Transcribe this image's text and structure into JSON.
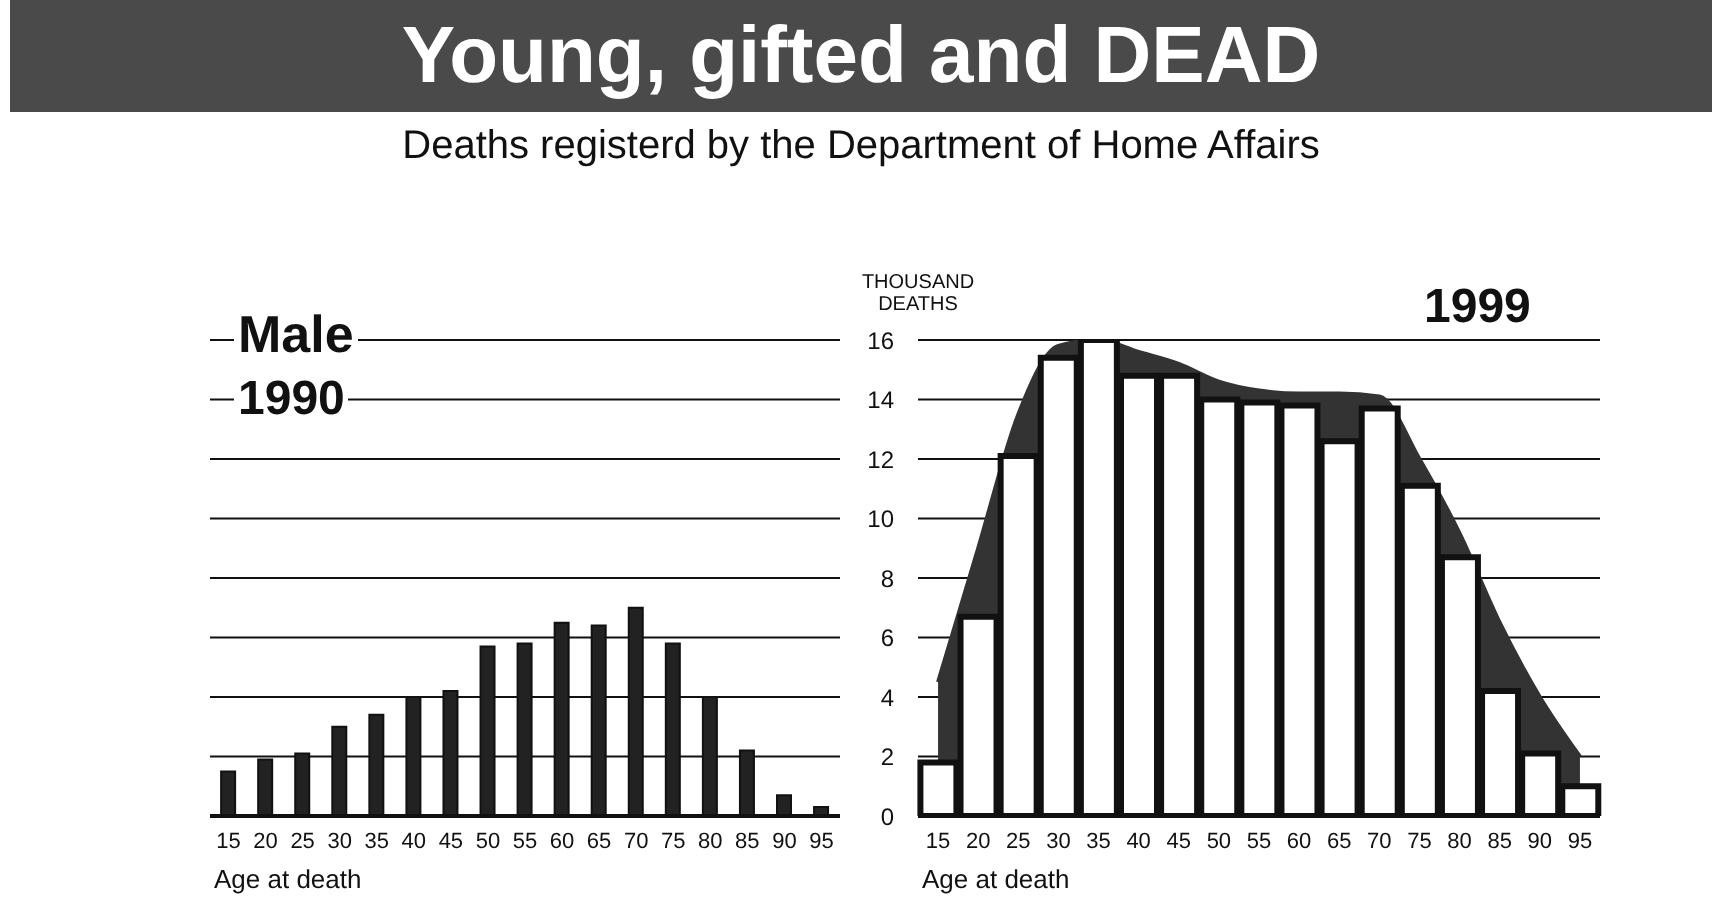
{
  "chart_data": [
    {
      "type": "bar",
      "title": "Young, gifted and DEAD",
      "subtitle": "Deaths registerd by the Department of Home Affairs",
      "annotations": [
        "Male",
        "1990"
      ],
      "xlabel": "Age at death",
      "categories": [
        "15",
        "20",
        "25",
        "30",
        "35",
        "40",
        "45",
        "50",
        "55",
        "60",
        "65",
        "70",
        "75",
        "80",
        "85",
        "90",
        "95"
      ],
      "series": [
        {
          "color": "#222222",
          "values": [
            1.5,
            1.9,
            2.1,
            3.0,
            3.4,
            4.0,
            4.2,
            5.7,
            5.8,
            6.5,
            6.4,
            7.0,
            5.8,
            4.0,
            2.2,
            0.7,
            0.3
          ]
        }
      ],
      "ylim": [
        0,
        16
      ],
      "yticks": [
        0,
        2,
        4,
        6,
        8,
        10,
        12,
        14,
        16
      ],
      "grid": "y",
      "tick_labels": "x"
    },
    {
      "type": "bar",
      "annotations": [
        "1999"
      ],
      "ylabel": "THOUSAND DEATHS",
      "xlabel": "Age at death",
      "categories": [
        "15",
        "20",
        "25",
        "30",
        "35",
        "40",
        "45",
        "50",
        "55",
        "60",
        "65",
        "70",
        "75",
        "80",
        "85",
        "90",
        "95"
      ],
      "series": [
        {
          "type": "area",
          "color": "#333333",
          "values": [
            4.5,
            9.0,
            13.5,
            15.8,
            16.0,
            15.6,
            15.2,
            14.6,
            14.3,
            14.2,
            14.2,
            14.1,
            12.0,
            9.5,
            6.5,
            4.0,
            2.0
          ]
        },
        {
          "color": "#ffffff",
          "values": [
            1.8,
            6.7,
            12.1,
            15.4,
            16.0,
            14.8,
            14.8,
            14.0,
            13.9,
            13.8,
            12.6,
            13.7,
            11.1,
            8.7,
            4.2,
            2.1,
            1.0
          ]
        }
      ],
      "ylim": [
        0,
        16
      ],
      "yticks": [
        0,
        2,
        4,
        6,
        8,
        10,
        12,
        14,
        16
      ],
      "grid": "y"
    }
  ]
}
